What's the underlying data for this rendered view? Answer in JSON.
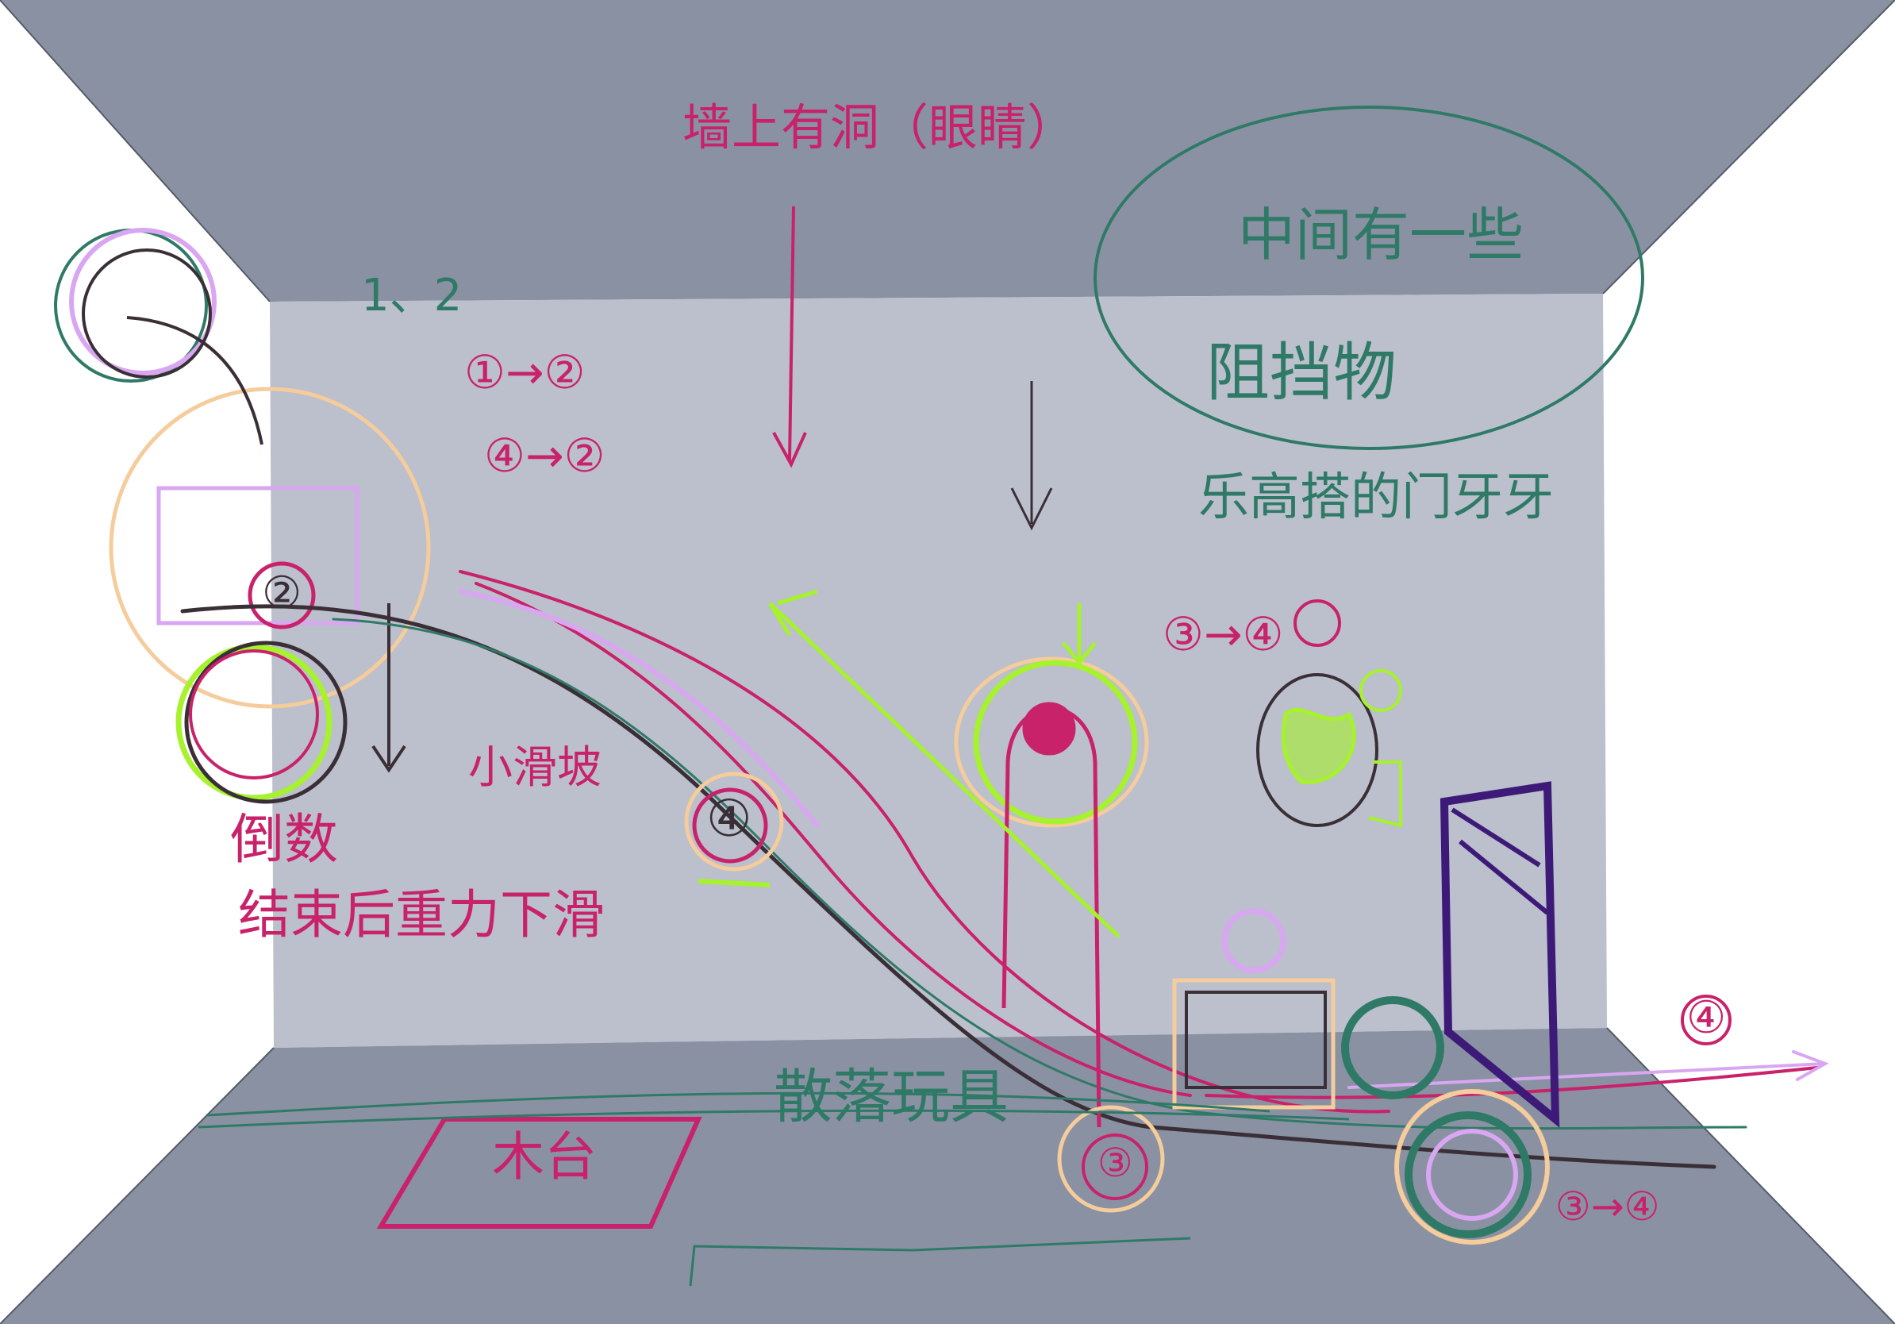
{
  "colors": {
    "ceiling": "#8a91a3",
    "back_wall": "#bcbfcc",
    "floor": "#8a91a3",
    "side_wall": "#ffffff",
    "magenta": "#c8226a",
    "teal": "#2f7a66",
    "black": "#3a2f36",
    "lime": "#a6f22c",
    "lavender": "#d9a6f2",
    "peach": "#f5cc9b",
    "purple": "#3d1a78"
  },
  "labels": {
    "wall_hole": "墙上有洞（眼睛）",
    "middle_line1": "中间有一些",
    "middle_line2": "阻挡物",
    "lego": "乐高搭的门牙牙",
    "one_two": "1、2",
    "seq_a": "①→②",
    "seq_b": "④→②",
    "seq_c": "③→④",
    "countdown_line1": "倒数",
    "countdown_line2": "结束后重力下滑",
    "small_slide": "小滑坡",
    "toy": "木台",
    "scatter": "散落玩具",
    "num_4_mid": "④",
    "num_2_top": "②",
    "num_4_right": "④",
    "num_3_floor": "③",
    "seq_d": "③→④"
  }
}
